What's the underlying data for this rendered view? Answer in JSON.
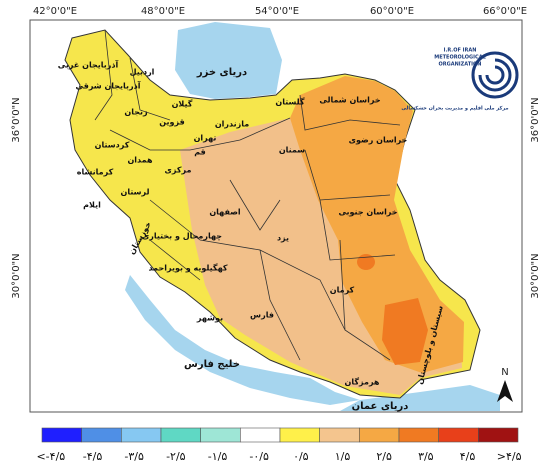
{
  "map": {
    "lon_labels": [
      "42°0'0\"E",
      "48°0'0\"E",
      "54°0'0\"E",
      "60°0'0\"E",
      "66°0'0\"E"
    ],
    "lat_labels": [
      "36°0'0\"N",
      "30°0'0\"N"
    ],
    "water_labels": [
      "دریای خزر",
      "خلیج فارس",
      "دریای عمان"
    ],
    "regions": [
      "آذربایجان غربی",
      "آذربایجان شرقی",
      "اردبیل",
      "گیلان",
      "زنجان",
      "قزوین",
      "مازندران",
      "تهران",
      "گلستان",
      "کردستان",
      "کرمانشاه",
      "همدان",
      "مرکزی",
      "قم",
      "لرستان",
      "ایلام",
      "خوزستان",
      "اصفهان",
      "چهارمحال و بختیاری",
      "کهگیلویه و بویراحمد",
      "بوشهر",
      "فارس",
      "سمنان",
      "خراسان شمالی",
      "خراسان رضوی",
      "خراسان جنوبی",
      "یزد",
      "کرمان",
      "سیستان و بلوچستان",
      "هرمزگان"
    ],
    "north": "N",
    "logo": [
      "I.R.OF IRAN",
      "METEOROLOGICAL",
      "ORGANIZATION",
      "مرکز ملی اقلیم و مدیریت بحران خشکسالی"
    ]
  },
  "legend": {
    "colors": [
      "#1f1fff",
      "#4f8fe6",
      "#86c8f2",
      "#5fd8c4",
      "#9ee6d6",
      "#ffffff",
      "#fff04a",
      "#f4c58e",
      "#f5a844",
      "#f07a22",
      "#e8401a",
      "#a01212"
    ],
    "labels": [
      "<-۴/۵",
      "-۴/۵",
      "-۳/۵",
      "-۲/۵",
      "-۱/۵",
      "-۰/۵",
      "۰/۵",
      "۱/۵",
      "۲/۵",
      "۳/۵",
      "۴/۵",
      ">۴/۵"
    ]
  }
}
